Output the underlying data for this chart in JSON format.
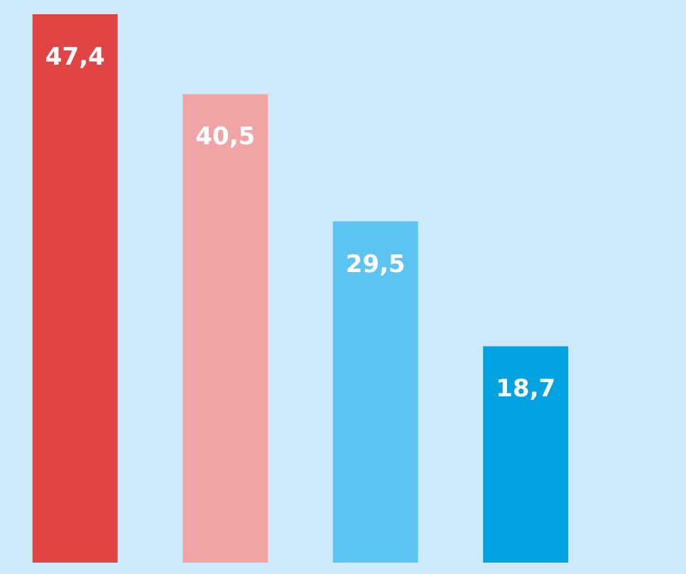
{
  "chart_data": {
    "type": "bar",
    "categories": [
      null,
      null,
      null,
      null
    ],
    "values": [
      47.4,
      40.5,
      29.5,
      18.7
    ],
    "colors": [
      "#e04444",
      "#f0a4a4",
      "#5bc4f1",
      "#00a3e0"
    ],
    "value_labels": [
      "47,4",
      "40,5",
      "29,5",
      "18,7"
    ]
  }
}
